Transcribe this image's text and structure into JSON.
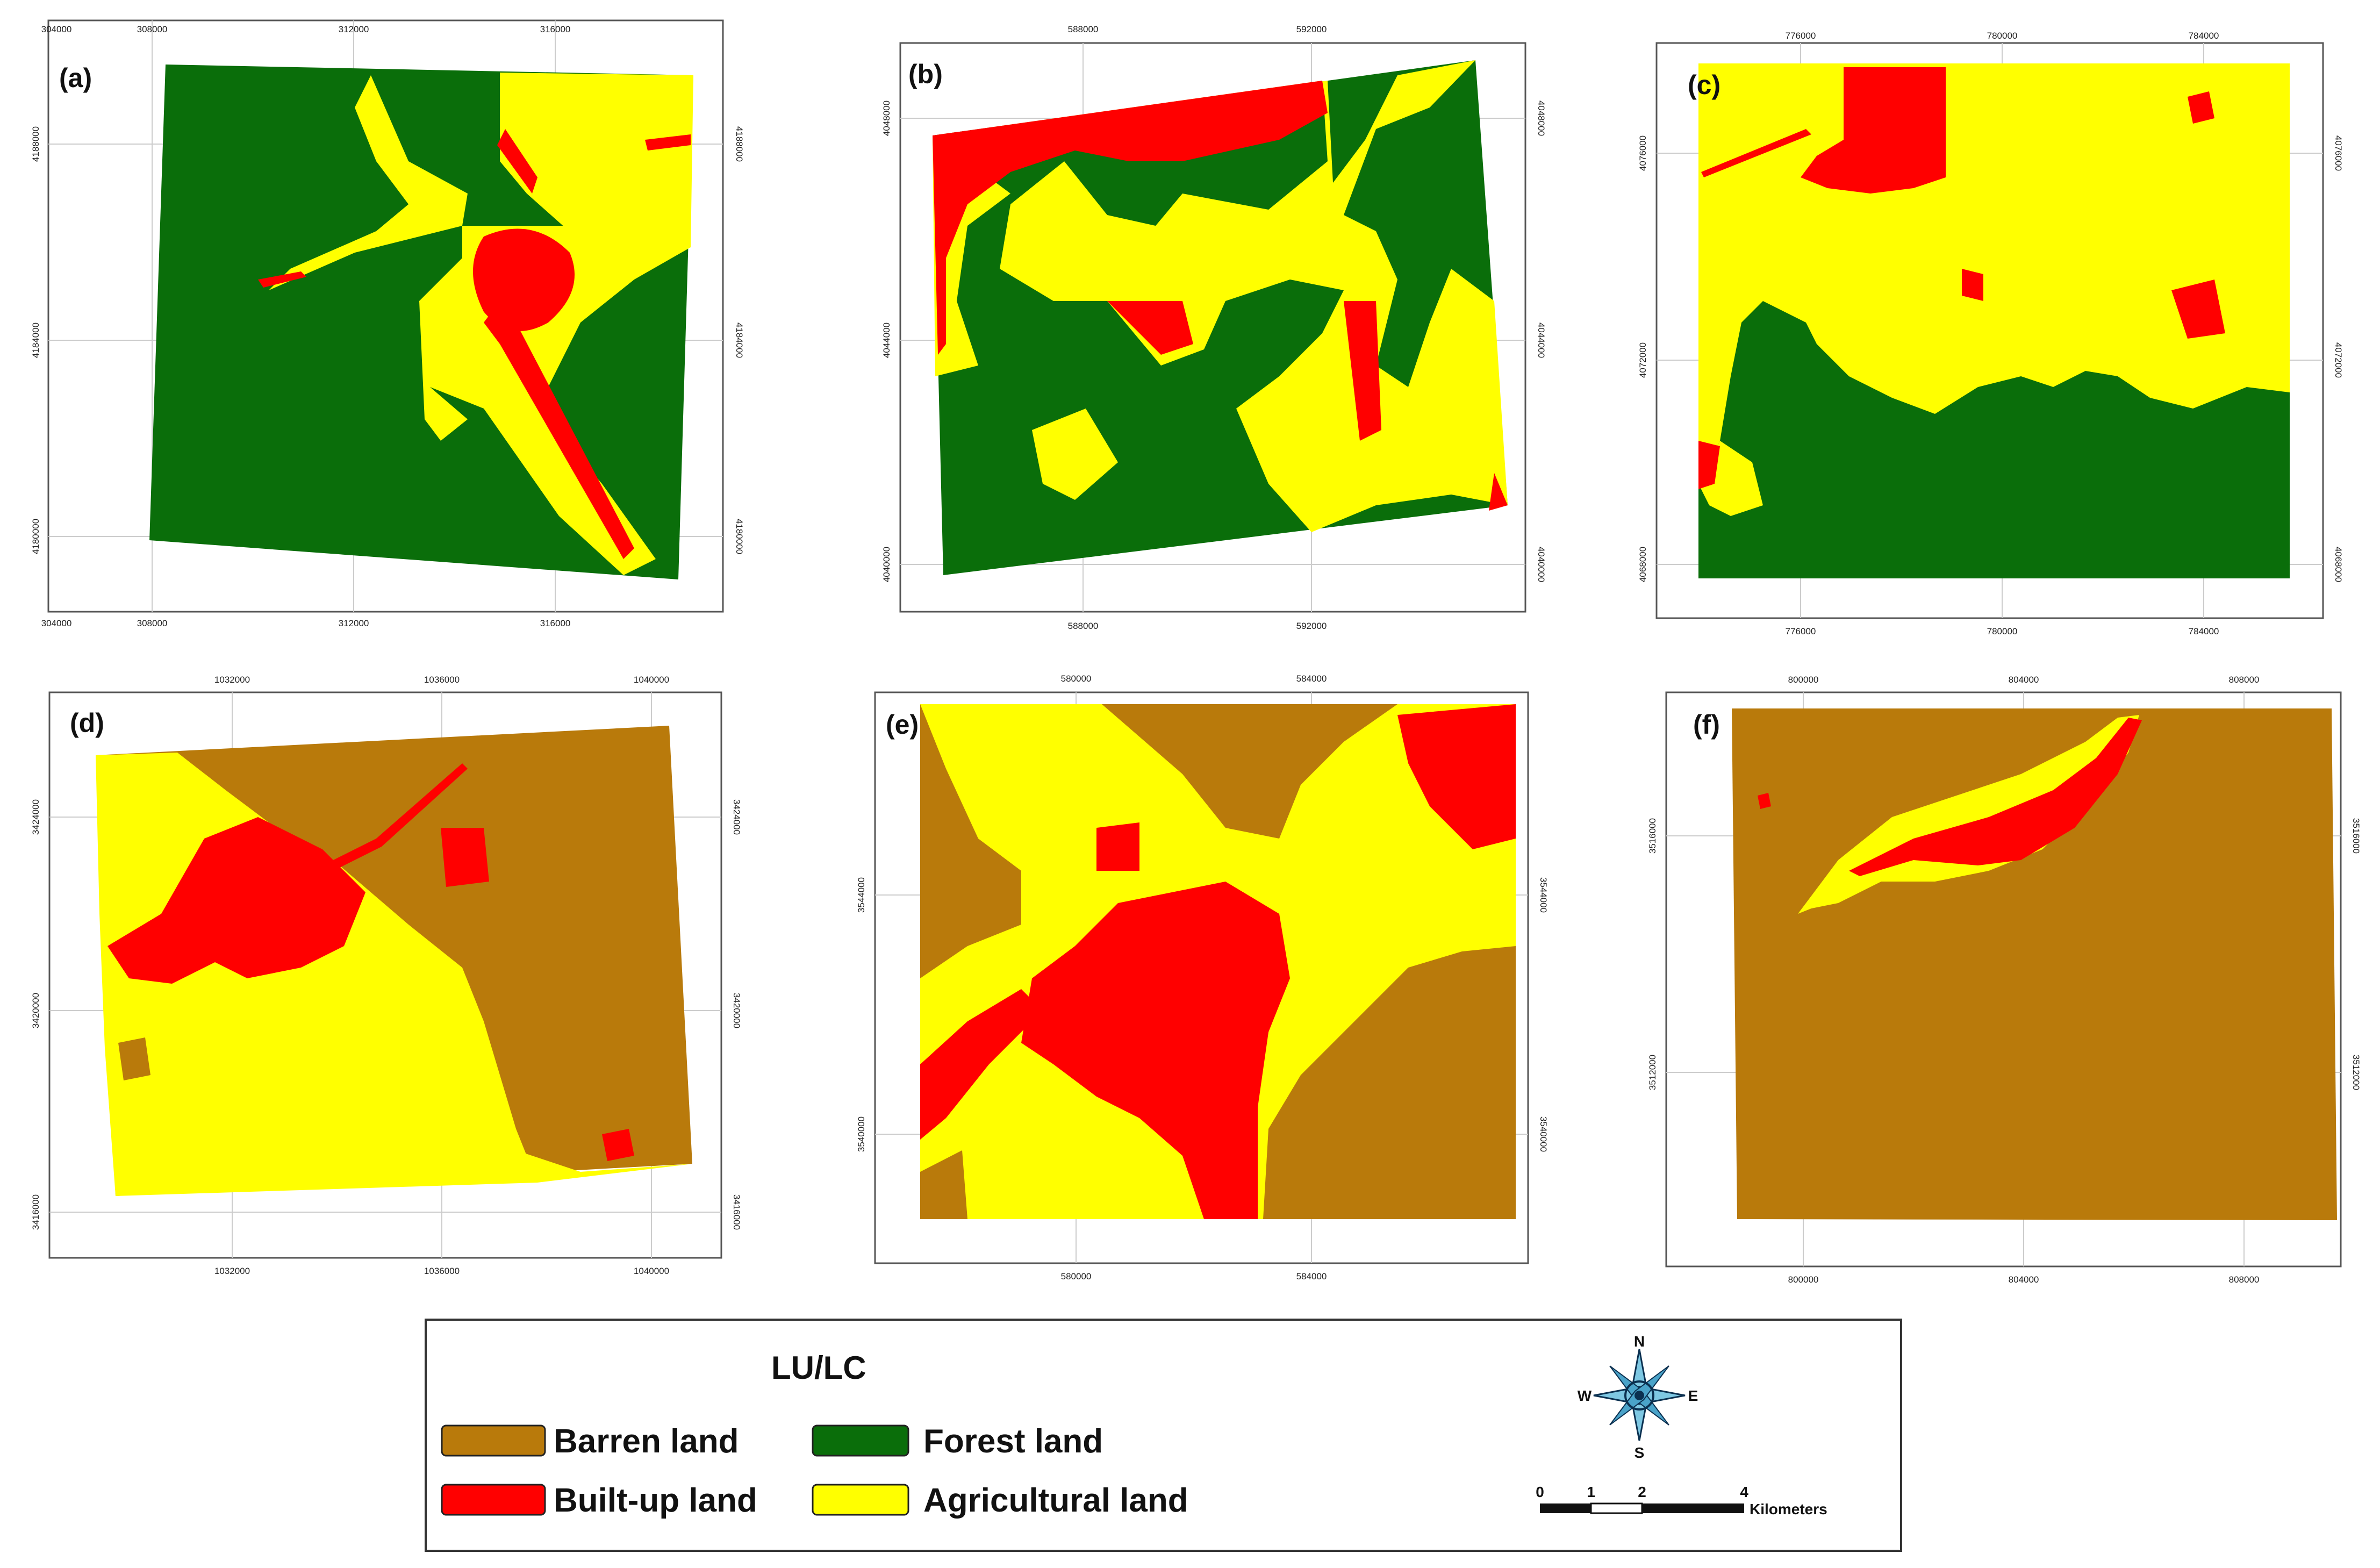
{
  "panels": [
    {
      "id": "a",
      "label": "(a)",
      "x_ticks": [
        "304000",
        "308000",
        "312000",
        "316000"
      ],
      "y_ticks": [
        "4188000",
        "4184000",
        "4180000"
      ]
    },
    {
      "id": "b",
      "label": "(b)",
      "x_ticks": [
        "588000",
        "592000"
      ],
      "y_ticks": [
        "4048000",
        "4044000",
        "4040000"
      ]
    },
    {
      "id": "c",
      "label": "(c)",
      "x_ticks": [
        "776000",
        "780000",
        "784000"
      ],
      "y_ticks": [
        "4076000",
        "4072000",
        "4068000"
      ]
    },
    {
      "id": "d",
      "label": "(d)",
      "x_ticks": [
        "1032000",
        "1036000",
        "1040000"
      ],
      "y_ticks": [
        "3424000",
        "3420000",
        "3416000"
      ]
    },
    {
      "id": "e",
      "label": "(e)",
      "x_ticks": [
        "580000",
        "584000"
      ],
      "y_ticks": [
        "3544000",
        "3540000"
      ]
    },
    {
      "id": "f",
      "label": "(f)",
      "x_ticks": [
        "800000",
        "804000",
        "808000"
      ],
      "y_ticks": [
        "3516000",
        "3512000"
      ]
    }
  ],
  "legend": {
    "title": "LU/LC",
    "items": [
      {
        "label": "Barren land",
        "color": "#b97a0b"
      },
      {
        "label": "Forest land",
        "color": "#0a6e0a"
      },
      {
        "label": "Built-up land",
        "color": "#ff0000"
      },
      {
        "label": "Agricultural land",
        "color": "#ffff00"
      }
    ]
  },
  "compass": {
    "n": "N",
    "s": "S",
    "e": "E",
    "w": "W"
  },
  "scale_bar": {
    "labels": [
      "0",
      "1",
      "2",
      "4"
    ],
    "unit": "Kilometers"
  }
}
